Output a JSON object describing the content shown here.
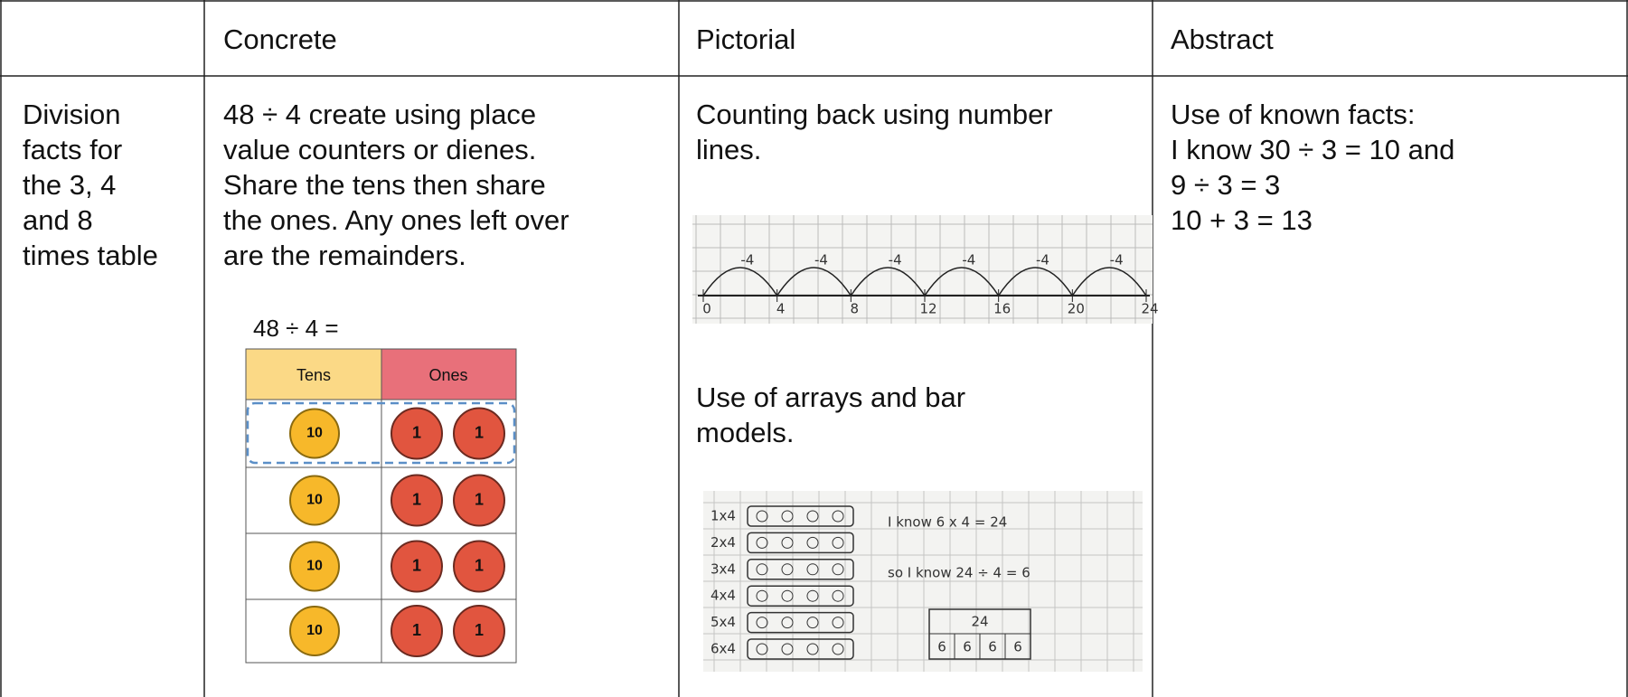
{
  "table": {
    "headers": [
      "Concrete",
      "Pictorial",
      "Abstract"
    ],
    "row_label": [
      "Division",
      "facts for",
      "the 3, 4",
      "and 8",
      "times table"
    ],
    "concrete": {
      "text": [
        "48 ÷ 4 create using place",
        "value counters or dienes.",
        "Share the tens then share",
        "the ones. Any ones left over",
        "are the remainders."
      ],
      "diagram": {
        "title": "48 ÷ 4 =",
        "headers": [
          "Tens",
          "Ones"
        ],
        "rows": [
          {
            "tens": "10",
            "ones": [
              "1",
              "1"
            ]
          },
          {
            "tens": "10",
            "ones": [
              "1",
              "1"
            ]
          },
          {
            "tens": "10",
            "ones": [
              "1",
              "1"
            ]
          },
          {
            "tens": "10",
            "ones": [
              "1",
              "1"
            ]
          }
        ]
      }
    },
    "pictorial": {
      "text1": [
        "Counting back using number",
        "lines."
      ],
      "number_line": {
        "jumps": [
          "-4",
          "-4",
          "-4",
          "-4",
          "-4",
          "-4"
        ],
        "marks": [
          "0",
          "4",
          "8",
          "12",
          "16",
          "20",
          "24"
        ]
      },
      "text2": [
        "Use of arrays and bar",
        "models."
      ],
      "arrays": {
        "row_labels": [
          "1x4",
          "2x4",
          "3x4",
          "4x4",
          "5x4",
          "6x4"
        ],
        "facts": [
          "I know 6 x 4 = 24",
          "so I know 24 ÷ 4 = 6"
        ],
        "bar_total": "24",
        "bar_parts": [
          "6",
          "6",
          "6",
          "6"
        ]
      }
    },
    "abstract": [
      "Use of known facts:",
      "I know 30 ÷ 3 = 10 and",
      "9 ÷ 3 = 3",
      "10 + 3 = 13"
    ]
  }
}
